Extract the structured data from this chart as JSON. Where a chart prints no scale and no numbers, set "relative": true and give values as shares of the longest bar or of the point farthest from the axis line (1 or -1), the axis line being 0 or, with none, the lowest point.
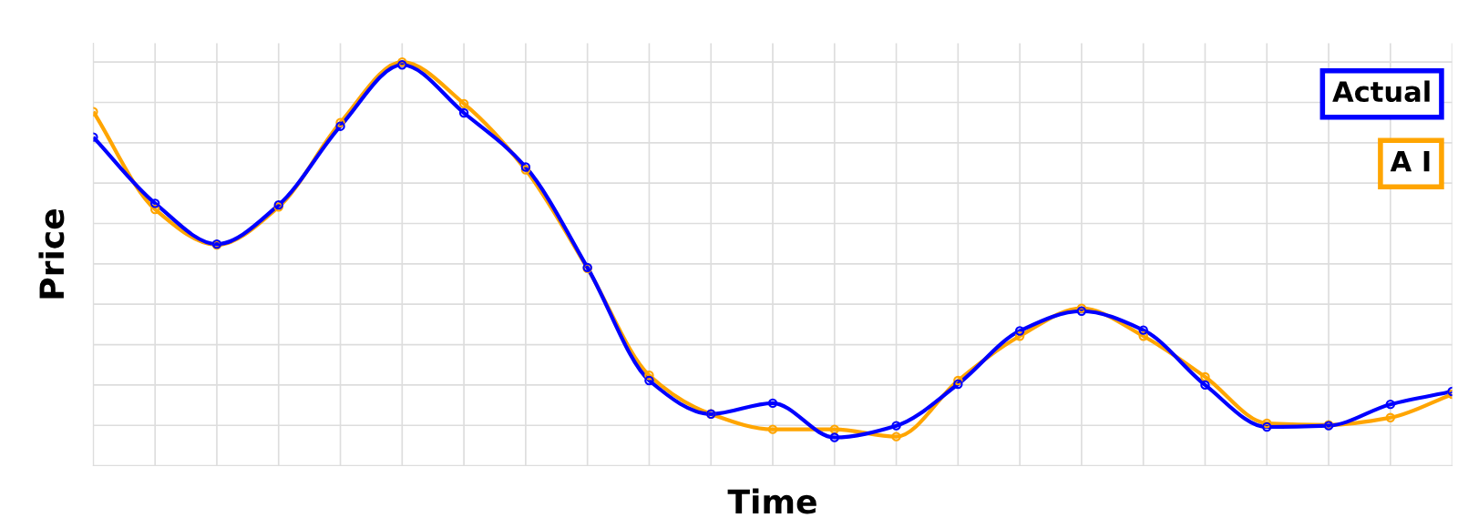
{
  "chart_data": {
    "type": "line",
    "relative": true,
    "xlabel": "Time",
    "ylabel": "Price",
    "categories": [
      null,
      null,
      null,
      null,
      null,
      null,
      null,
      null,
      null,
      null,
      null,
      null,
      null,
      null,
      null,
      null,
      null,
      null,
      null,
      null,
      null,
      null,
      null
    ],
    "series": [
      {
        "name": "A I",
        "color": "#ffa500",
        "values": [
          0.877,
          0.635,
          0.547,
          0.641,
          0.85,
          1.0,
          0.897,
          0.733,
          0.489,
          0.224,
          0.128,
          0.09,
          0.09,
          0.072,
          0.211,
          0.321,
          0.39,
          0.321,
          0.22,
          0.105,
          0.101,
          0.119,
          0.177
        ]
      },
      {
        "name": "Actual",
        "color": "#0000ff",
        "values": [
          0.814,
          0.65,
          0.549,
          0.646,
          0.841,
          0.993,
          0.874,
          0.74,
          0.491,
          0.211,
          0.128,
          0.155,
          0.07,
          0.099,
          0.202,
          0.334,
          0.383,
          0.336,
          0.2,
          0.096,
          0.099,
          0.152,
          0.184
        ]
      }
    ],
    "grid": true,
    "legend": "top right",
    "tick_labels": false,
    "marker": "circle",
    "line_style": "solid"
  }
}
